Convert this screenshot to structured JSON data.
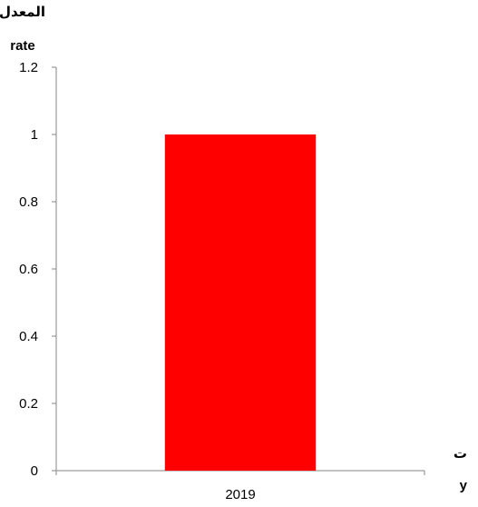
{
  "chart_data": {
    "type": "bar",
    "categories": [
      "2019"
    ],
    "series": [
      {
        "values": [
          1
        ]
      }
    ],
    "ylabel_ar": "المعدل",
    "ylabel_en": "rate",
    "xlabel_ar": "ت",
    "xlabel_en": "y",
    "ylim": [
      0,
      1.2
    ],
    "yticks": [
      "0",
      "0.2",
      "0.4",
      "0.6",
      "0.8",
      "1",
      "1.2"
    ],
    "bar_color": "#ff0000",
    "grid": false
  }
}
